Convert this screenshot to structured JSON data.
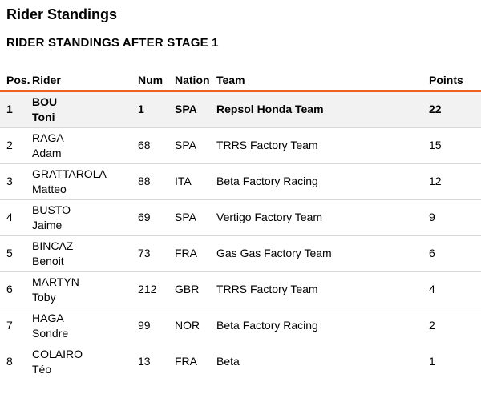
{
  "page": {
    "title": "Rider Standings",
    "section_heading": "RIDER STANDINGS AFTER STAGE 1"
  },
  "table": {
    "columns": {
      "pos": "Pos.",
      "rider": "Rider",
      "num": "Num",
      "nation": "Nation",
      "team": "Team",
      "points": "Points"
    },
    "rows": [
      {
        "pos": "1",
        "surname": "BOU",
        "firstname": "Toni",
        "num": "1",
        "nation": "SPA",
        "team": "Repsol Honda Team",
        "points": "22",
        "highlight": true
      },
      {
        "pos": "2",
        "surname": "RAGA",
        "firstname": "Adam",
        "num": "68",
        "nation": "SPA",
        "team": "TRRS Factory Team",
        "points": "15",
        "highlight": false
      },
      {
        "pos": "3",
        "surname": "GRATTAROLA",
        "firstname": "Matteo",
        "num": "88",
        "nation": "ITA",
        "team": "Beta Factory Racing",
        "points": "12",
        "highlight": false
      },
      {
        "pos": "4",
        "surname": "BUSTO",
        "firstname": "Jaime",
        "num": "69",
        "nation": "SPA",
        "team": "Vertigo Factory Team",
        "points": "9",
        "highlight": false
      },
      {
        "pos": "5",
        "surname": "BINCAZ",
        "firstname": "Benoit",
        "num": "73",
        "nation": "FRA",
        "team": "Gas Gas Factory Team",
        "points": "6",
        "highlight": false
      },
      {
        "pos": "6",
        "surname": "MARTYN",
        "firstname": "Toby",
        "num": "212",
        "nation": "GBR",
        "team": "TRRS Factory Team",
        "points": "4",
        "highlight": false
      },
      {
        "pos": "7",
        "surname": "HAGA",
        "firstname": "Sondre",
        "num": "99",
        "nation": "NOR",
        "team": "Beta Factory Racing",
        "points": "2",
        "highlight": false
      },
      {
        "pos": "8",
        "surname": "COLAIRO",
        "firstname": "Téo",
        "num": "13",
        "nation": "FRA",
        "team": "Beta",
        "points": "1",
        "highlight": false
      }
    ]
  },
  "colors": {
    "accent": "#f3601d",
    "leader_row_bg": "#f2f2f2",
    "row_divider": "#d8d8d8"
  }
}
